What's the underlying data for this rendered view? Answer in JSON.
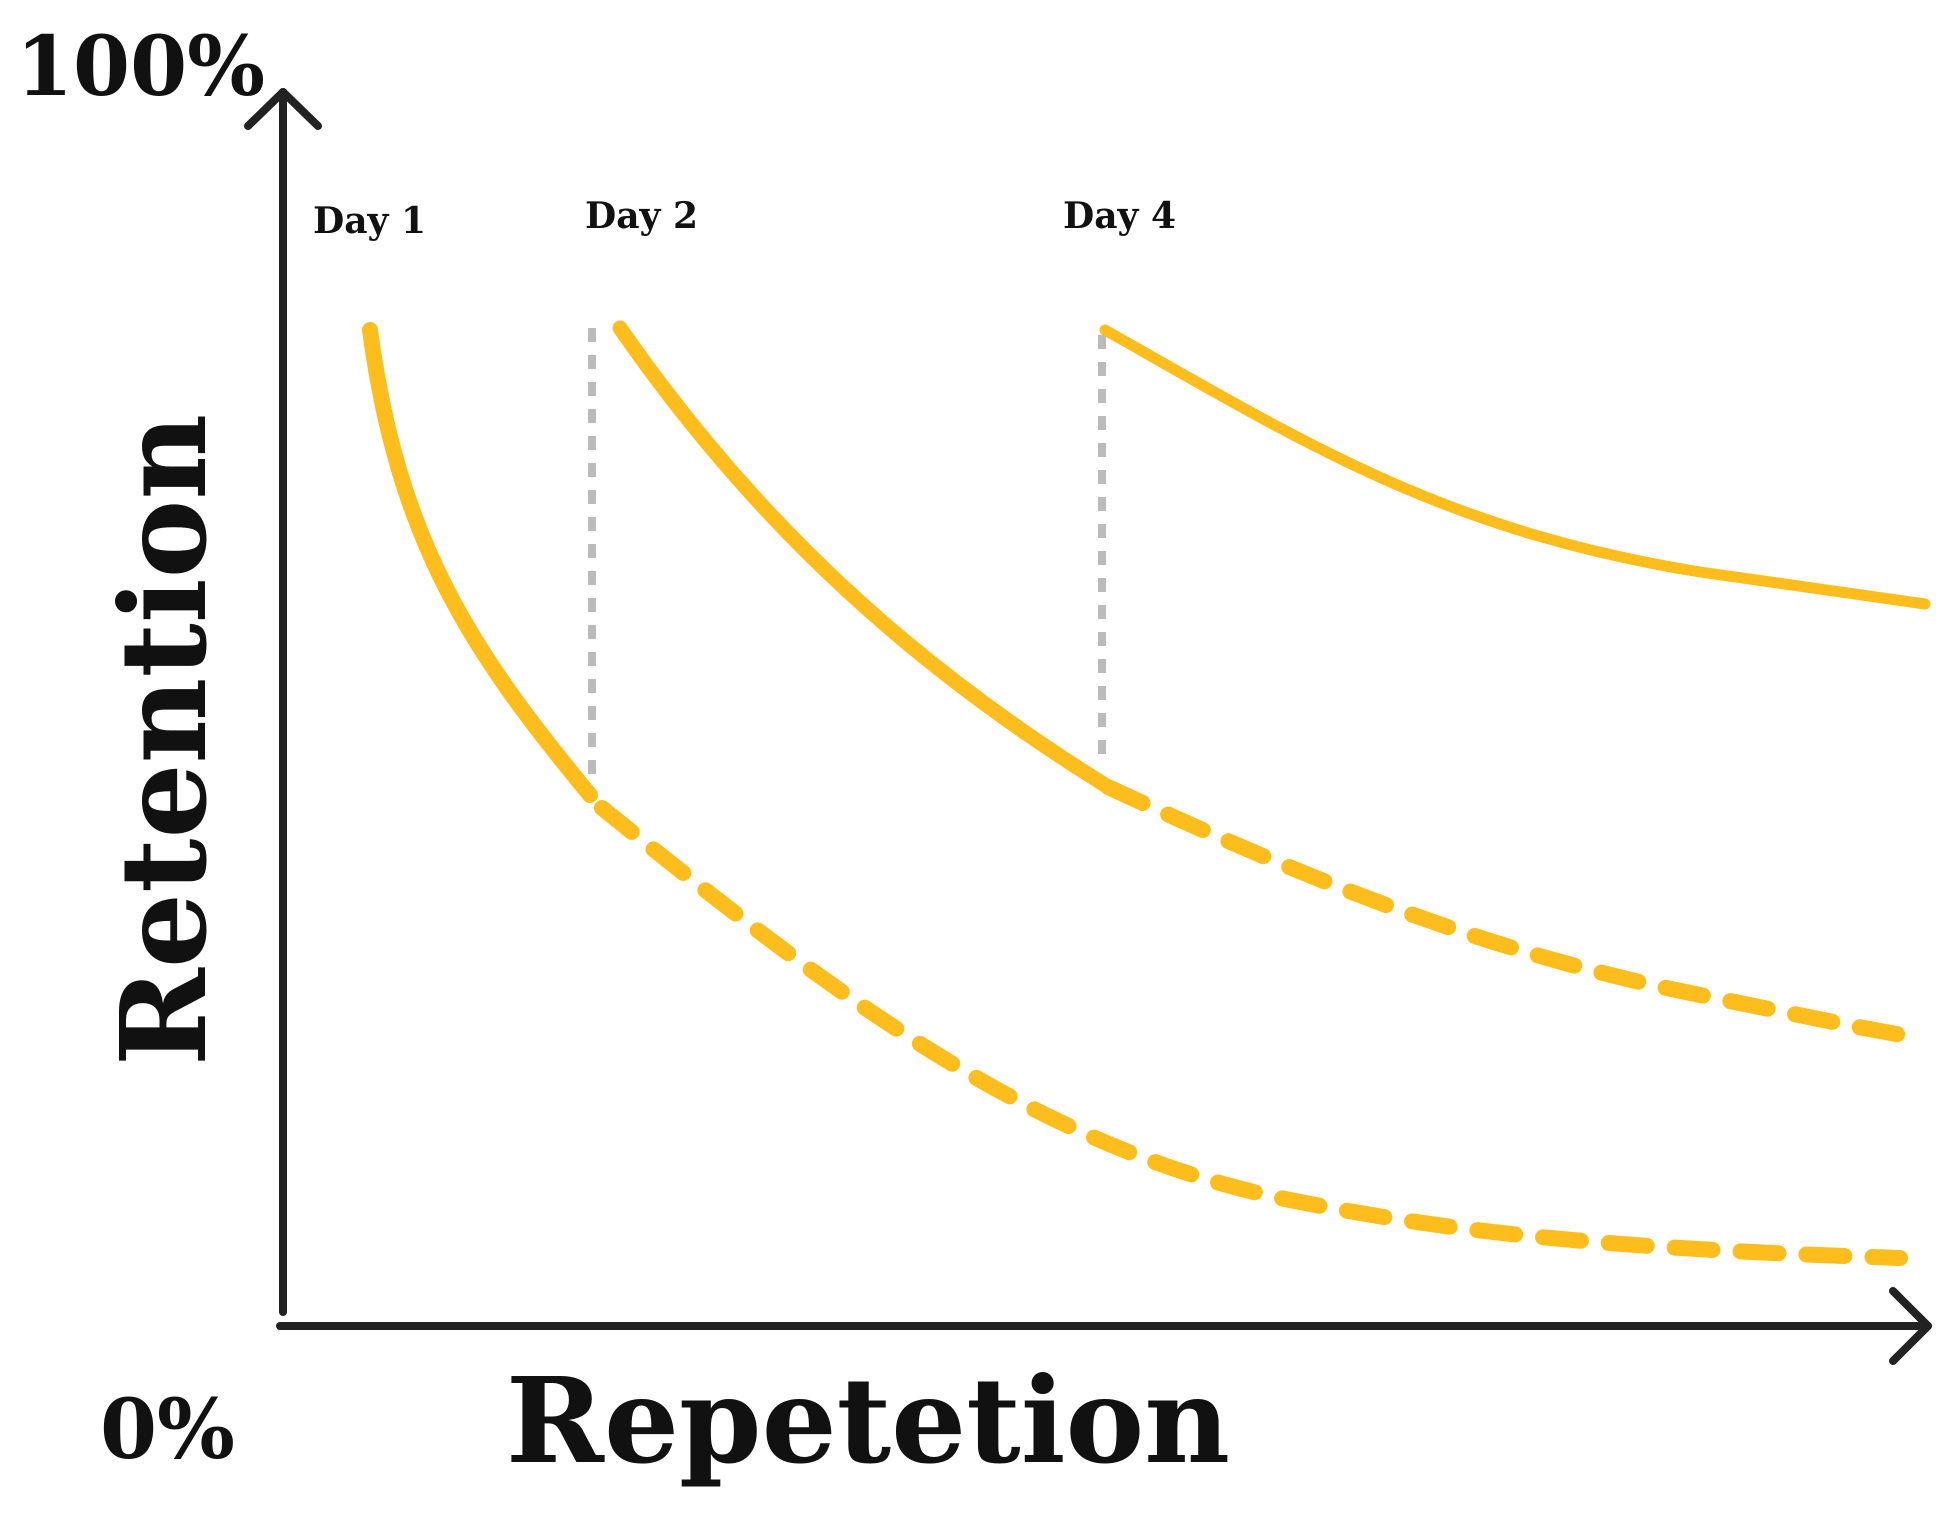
{
  "labels": {
    "top_percent": "100%",
    "bottom_percent": "0%",
    "y_axis": "Retention",
    "x_axis": "Repetetion"
  },
  "days": [
    {
      "label": "Day 1"
    },
    {
      "label": "Day 2"
    },
    {
      "label": "Day 4"
    }
  ],
  "colors": {
    "curve": "#FDBD1C",
    "axis": "#222222",
    "guide": "#BBBBBB"
  }
}
